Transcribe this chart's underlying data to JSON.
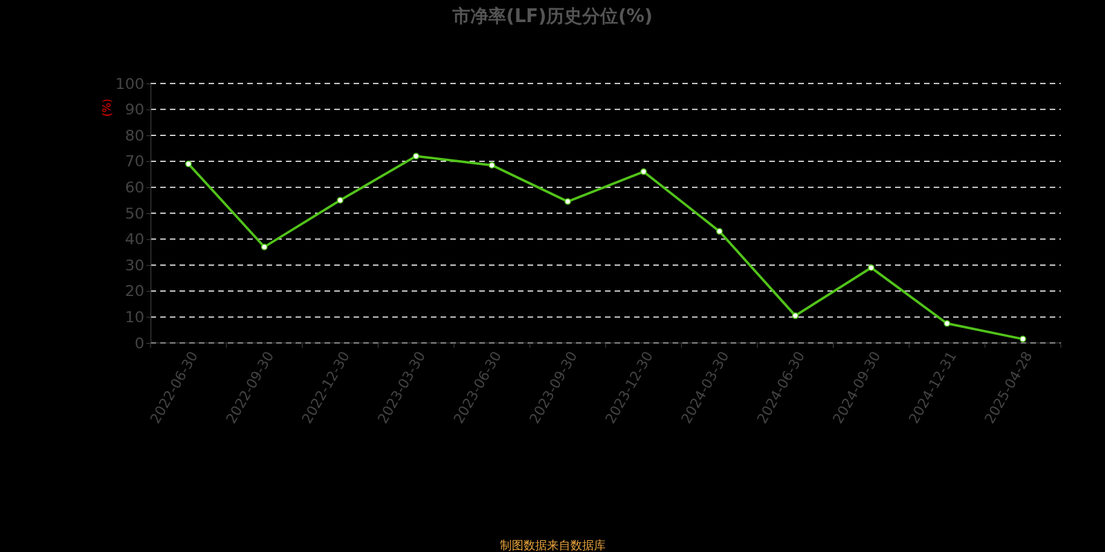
{
  "chart_data": {
    "type": "line",
    "title": "市净率(LF)历史分位(%)",
    "ylabel": "(%)",
    "categories": [
      "2022-06-30",
      "2022-09-30",
      "2022-12-30",
      "2023-03-30",
      "2023-06-30",
      "2023-09-30",
      "2023-12-30",
      "2024-03-30",
      "2024-06-30",
      "2024-09-30",
      "2024-12-31",
      "2025-04-28"
    ],
    "series": [
      {
        "color": "#52c41a",
        "values": [
          69,
          37,
          55,
          72,
          68.5,
          54.5,
          66,
          43,
          10.5,
          29,
          7.5,
          1.5
        ]
      }
    ],
    "ylim": [
      0,
      100
    ],
    "yticks": [
      0,
      10,
      20,
      30,
      40,
      50,
      60,
      70,
      80,
      90,
      100
    ],
    "grid": "y",
    "marker": "circle",
    "line_style": "solid",
    "annotations": [
      "制图数据来自数据库"
    ]
  }
}
